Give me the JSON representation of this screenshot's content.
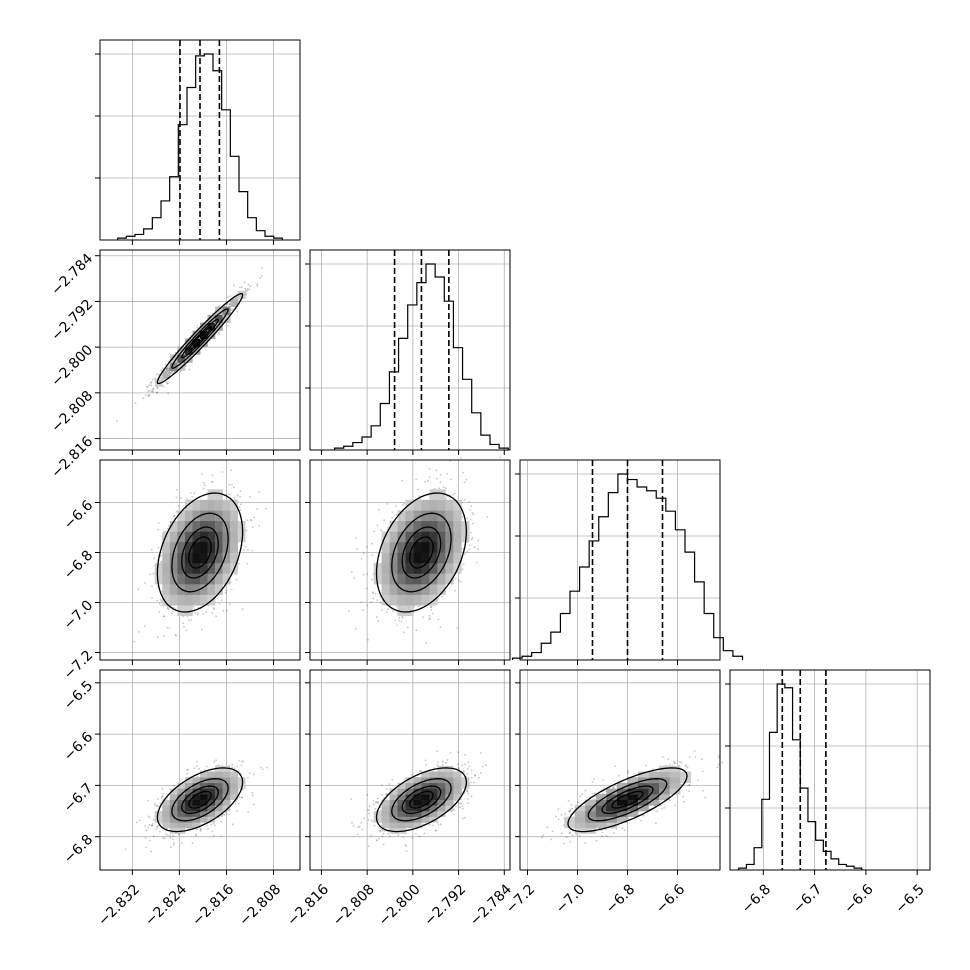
{
  "chart_data": {
    "type": "corner",
    "grid": true,
    "parameters": [
      {
        "index": 0,
        "range": [
          -2.8375,
          -2.8035
        ],
        "ticks": [
          -2.832,
          -2.824,
          -2.816,
          -2.808
        ],
        "tick_labels": [
          "−2.832",
          "−2.824",
          "−2.816",
          "−2.808"
        ],
        "center": -2.8205,
        "sd": 0.0035,
        "quantiles": [
          -2.8239,
          -2.8205,
          -2.8172
        ]
      },
      {
        "index": 1,
        "range": [
          -2.818,
          -2.783
        ],
        "ticks": [
          -2.816,
          -2.808,
          -2.8,
          -2.792,
          -2.784
        ],
        "tick_labels": [
          "−2.816",
          "−2.808",
          "−2.800",
          "−2.792",
          "−2.784"
        ],
        "center": -2.7985,
        "sd": 0.0038,
        "quantiles": [
          -2.8032,
          -2.7985,
          -2.7937
        ]
      },
      {
        "index": 2,
        "range": [
          -7.23,
          -6.43
        ],
        "ticks": [
          -7.2,
          -7.0,
          -6.8,
          -6.6
        ],
        "tick_labels": [
          "−7.2",
          "−7.0",
          "−6.8",
          "−6.6"
        ],
        "center": -6.8,
        "sd": 0.115,
        "quantiles": [
          -6.94,
          -6.8,
          -6.66
        ]
      },
      {
        "index": 3,
        "range": [
          -6.865,
          -6.475
        ],
        "ticks": [
          -6.8,
          -6.7,
          -6.6,
          -6.5
        ],
        "tick_labels": [
          "−6.8",
          "−6.7",
          "−6.6",
          "−6.5"
        ],
        "center": -6.728,
        "sd": 0.03,
        "quantiles": [
          -6.763,
          -6.728,
          -6.678
        ]
      }
    ],
    "histograms": [
      {
        "param": 0,
        "values": [
          1,
          2,
          3,
          6,
          12,
          21,
          34,
          62,
          82,
          99,
          100,
          91,
          70,
          45,
          26,
          12,
          5,
          2,
          1
        ]
      },
      {
        "param": 1,
        "values": [
          1,
          2,
          4,
          7,
          13,
          25,
          42,
          60,
          78,
          90,
          100,
          93,
          80,
          55,
          38,
          20,
          8,
          3,
          1
        ]
      },
      {
        "param": 2,
        "values": [
          1,
          2,
          4,
          9,
          15,
          25,
          37,
          50,
          64,
          77,
          90,
          100,
          97,
          93,
          91,
          87,
          80,
          70,
          58,
          42,
          25,
          12,
          5,
          2
        ]
      },
      {
        "param": 3,
        "values": [
          1,
          3,
          12,
          38,
          74,
          100,
          98,
          70,
          44,
          26,
          16,
          10,
          6,
          3,
          2,
          1
        ]
      }
    ],
    "pairs": [
      {
        "x": 0,
        "y": 1,
        "corr": 0.97
      },
      {
        "x": 0,
        "y": 2,
        "corr": 0.35
      },
      {
        "x": 1,
        "y": 2,
        "corr": 0.35
      },
      {
        "x": 0,
        "y": 3,
        "corr": 0.55
      },
      {
        "x": 1,
        "y": 3,
        "corr": 0.55
      },
      {
        "x": 2,
        "y": 3,
        "corr": 0.75
      }
    ],
    "contour_levels_sigma": [
      0.5,
      1.0,
      1.5,
      2.0
    ]
  }
}
